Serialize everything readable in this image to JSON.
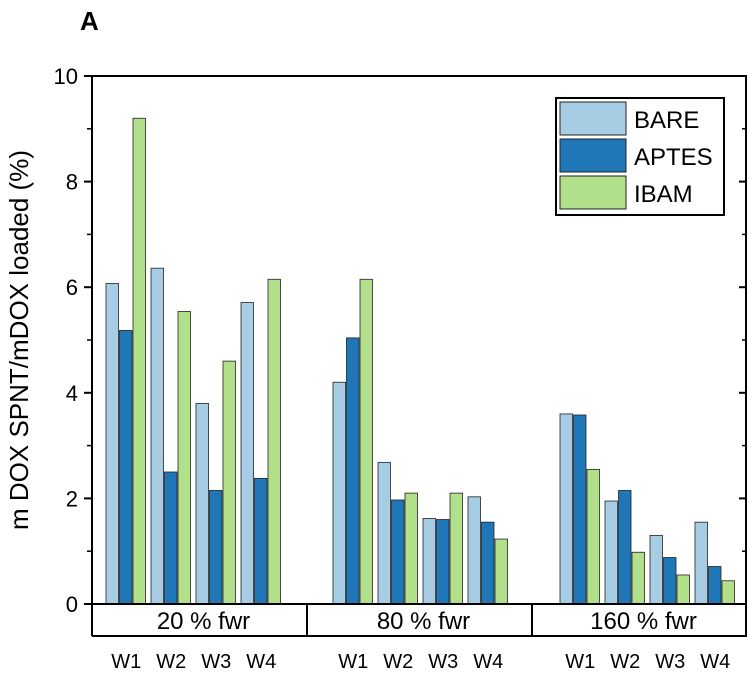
{
  "chart_data": {
    "type": "bar",
    "panel_label": "A",
    "ylabel": "m DOX SPNT/mDOX loaded (%)",
    "ylim": [
      0,
      10
    ],
    "yticks": [
      0,
      2,
      4,
      6,
      8,
      10
    ],
    "groups": [
      {
        "label": "20 % fwr",
        "categories": [
          "W1",
          "W2",
          "W3",
          "W4"
        ]
      },
      {
        "label": "80 % fwr",
        "categories": [
          "W1",
          "W2",
          "W3",
          "W4"
        ]
      },
      {
        "label": "160 % fwr",
        "categories": [
          "W1",
          "W2",
          "W3",
          "W4"
        ]
      }
    ],
    "series": [
      {
        "name": "BARE",
        "color": "#a6cde3",
        "values": [
          [
            6.07,
            6.36,
            3.8,
            5.71
          ],
          [
            4.2,
            2.68,
            1.62,
            2.03
          ],
          [
            3.6,
            1.95,
            1.3,
            1.55
          ]
        ]
      },
      {
        "name": "APTES",
        "color": "#1f77b8",
        "values": [
          [
            5.18,
            2.5,
            2.15,
            2.38
          ],
          [
            5.04,
            1.97,
            1.6,
            1.55
          ],
          [
            3.58,
            2.15,
            0.88,
            0.71
          ]
        ]
      },
      {
        "name": "IBAM",
        "color": "#b2df8a",
        "values": [
          [
            9.2,
            5.54,
            4.6,
            6.15
          ],
          [
            6.15,
            2.1,
            2.1,
            1.23
          ],
          [
            2.55,
            0.98,
            0.55,
            0.44
          ]
        ]
      }
    ],
    "legend_position": "top-right",
    "grid": false
  }
}
